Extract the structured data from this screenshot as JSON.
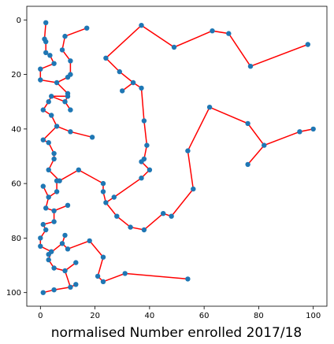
{
  "chart_data": {
    "type": "line",
    "title": "",
    "xlabel": "normalised Number enrolled 2017/18",
    "ylabel": "",
    "xlim": [
      -5,
      105
    ],
    "ylim": [
      105,
      -5
    ],
    "y_inverted": true,
    "grid": false,
    "xticks": [
      0,
      20,
      40,
      60,
      80,
      100
    ],
    "yticks": [
      0,
      20,
      40,
      60,
      80,
      100
    ],
    "line_color": "#ff0000",
    "marker_color": "#1f77b4",
    "points": [
      {
        "x": 2,
        "y": 1
      },
      {
        "x": 1.5,
        "y": 7
      },
      {
        "x": 2,
        "y": 8
      },
      {
        "x": 2,
        "y": 12
      },
      {
        "x": 3.5,
        "y": 13
      },
      {
        "x": 5,
        "y": 16
      },
      {
        "x": 0,
        "y": 18
      },
      {
        "x": 0,
        "y": 22
      },
      {
        "x": 6,
        "y": 23
      },
      {
        "x": 10,
        "y": 21
      },
      {
        "x": 11,
        "y": 20
      },
      {
        "x": 11,
        "y": 15
      },
      {
        "x": 8,
        "y": 11
      },
      {
        "x": 9,
        "y": 6
      },
      {
        "x": 17,
        "y": 3
      },
      {
        "x": 9,
        "y": 6
      },
      {
        "x": 8,
        "y": 11
      },
      {
        "x": 11,
        "y": 15
      },
      {
        "x": 11,
        "y": 20
      },
      {
        "x": 10,
        "y": 21
      },
      {
        "x": 6,
        "y": 23
      },
      {
        "x": 10,
        "y": 27
      },
      {
        "x": 10,
        "y": 28
      },
      {
        "x": 4,
        "y": 28
      },
      {
        "x": 3,
        "y": 30
      },
      {
        "x": 1,
        "y": 33
      },
      {
        "x": 4,
        "y": 35
      },
      {
        "x": 6,
        "y": 39
      },
      {
        "x": 11,
        "y": 41
      },
      {
        "x": 19,
        "y": 43
      },
      {
        "x": 11,
        "y": 41
      },
      {
        "x": 6,
        "y": 39
      },
      {
        "x": 4,
        "y": 35
      },
      {
        "x": 1,
        "y": 33
      },
      {
        "x": 3,
        "y": 30
      },
      {
        "x": 4,
        "y": 28
      },
      {
        "x": 10,
        "y": 28
      },
      {
        "x": 9,
        "y": 30
      },
      {
        "x": 11,
        "y": 33
      },
      {
        "x": 9,
        "y": 30
      },
      {
        "x": 4,
        "y": 28
      },
      {
        "x": 3,
        "y": 30
      },
      {
        "x": 1,
        "y": 33
      },
      {
        "x": 4,
        "y": 35
      },
      {
        "x": 6,
        "y": 39
      },
      {
        "x": 1,
        "y": 44
      },
      {
        "x": 3,
        "y": 45
      },
      {
        "x": 5,
        "y": 49
      },
      {
        "x": 5,
        "y": 51
      },
      {
        "x": 3,
        "y": 55
      },
      {
        "x": 7,
        "y": 59
      },
      {
        "x": 14,
        "y": 55
      },
      {
        "x": 23,
        "y": 60
      },
      {
        "x": 23,
        "y": 63
      },
      {
        "x": 24,
        "y": 67
      },
      {
        "x": 28,
        "y": 72
      },
      {
        "x": 33,
        "y": 76
      },
      {
        "x": 38,
        "y": 77
      },
      {
        "x": 45,
        "y": 71
      },
      {
        "x": 48,
        "y": 72
      },
      {
        "x": 56,
        "y": 62
      },
      {
        "x": 54,
        "y": 48
      },
      {
        "x": 62,
        "y": 32
      },
      {
        "x": 76,
        "y": 38
      },
      {
        "x": 82,
        "y": 46
      },
      {
        "x": 95,
        "y": 41
      },
      {
        "x": 100,
        "y": 40
      },
      {
        "x": 95,
        "y": 41
      },
      {
        "x": 82,
        "y": 46
      },
      {
        "x": 76,
        "y": 53
      }
    ],
    "segments2": [
      {
        "x": 6,
        "y": 59
      },
      {
        "x": 6,
        "y": 63
      },
      {
        "x": 3,
        "y": 65
      },
      {
        "x": 1,
        "y": 61
      },
      {
        "x": 3,
        "y": 65
      },
      {
        "x": 2,
        "y": 69
      },
      {
        "x": 5,
        "y": 70
      },
      {
        "x": 10,
        "y": 68
      },
      {
        "x": 5,
        "y": 70
      },
      {
        "x": 5,
        "y": 74
      },
      {
        "x": 1,
        "y": 75
      },
      {
        "x": 2,
        "y": 77
      },
      {
        "x": 0,
        "y": 80
      },
      {
        "x": 0,
        "y": 83
      },
      {
        "x": 4,
        "y": 85
      },
      {
        "x": 3,
        "y": 88
      },
      {
        "x": 5,
        "y": 91
      },
      {
        "x": 9,
        "y": 92
      },
      {
        "x": 13,
        "y": 89
      },
      {
        "x": 9,
        "y": 92
      },
      {
        "x": 11,
        "y": 98
      },
      {
        "x": 13,
        "y": 97
      },
      {
        "x": 11,
        "y": 98
      },
      {
        "x": 5,
        "y": 99
      },
      {
        "x": 1,
        "y": 100
      }
    ],
    "segments3": [
      {
        "x": 3,
        "y": 86
      },
      {
        "x": 8,
        "y": 82
      },
      {
        "x": 9,
        "y": 79
      },
      {
        "x": 8,
        "y": 82
      },
      {
        "x": 10,
        "y": 84
      },
      {
        "x": 18,
        "y": 81
      },
      {
        "x": 23,
        "y": 87
      },
      {
        "x": 21,
        "y": 94
      },
      {
        "x": 23,
        "y": 96
      },
      {
        "x": 31,
        "y": 93
      },
      {
        "x": 54,
        "y": 95
      }
    ],
    "segments4": [
      {
        "x": 24,
        "y": 14
      },
      {
        "x": 37,
        "y": 2
      },
      {
        "x": 49,
        "y": 10
      },
      {
        "x": 63,
        "y": 4
      },
      {
        "x": 69,
        "y": 5
      },
      {
        "x": 77,
        "y": 17
      },
      {
        "x": 98,
        "y": 9
      }
    ],
    "segments5": [
      {
        "x": 24,
        "y": 14
      },
      {
        "x": 29,
        "y": 19
      },
      {
        "x": 34,
        "y": 23
      },
      {
        "x": 37,
        "y": 25
      },
      {
        "x": 38,
        "y": 37
      },
      {
        "x": 39,
        "y": 46
      },
      {
        "x": 38,
        "y": 51
      },
      {
        "x": 37,
        "y": 52
      },
      {
        "x": 40,
        "y": 55
      },
      {
        "x": 37,
        "y": 58
      },
      {
        "x": 27,
        "y": 65
      },
      {
        "x": 24,
        "y": 67
      }
    ],
    "segments6": [
      {
        "x": 30,
        "y": 26
      },
      {
        "x": 34,
        "y": 23
      }
    ]
  }
}
